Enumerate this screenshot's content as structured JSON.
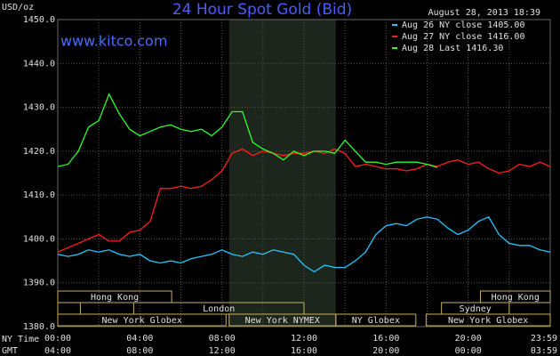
{
  "chart_data": {
    "type": "line",
    "title": "24 Hour Spot Gold (Bid)",
    "subtitle": "www.kitco.com",
    "timestamp": "August 28, 2013 18:39",
    "y_label": "USD/oz",
    "x_label": "NY Time",
    "x2_label": "GMT",
    "background": "#000000",
    "grid": true,
    "legend": "top-right",
    "xlim": [
      0,
      24
    ],
    "ylim": [
      1380,
      1450
    ],
    "yticks": [
      {
        "value": 1380,
        "label": "1380.0"
      },
      {
        "value": 1390,
        "label": "1390.0"
      },
      {
        "value": 1400,
        "label": "1400.0"
      },
      {
        "value": 1410,
        "label": "1410.0"
      },
      {
        "value": 1420,
        "label": "1420.0"
      },
      {
        "value": 1430,
        "label": "1430.0"
      },
      {
        "value": 1440,
        "label": "1440.0"
      },
      {
        "value": 1450,
        "label": "1450.0"
      }
    ],
    "xticks": [
      {
        "value": 0,
        "label": "00:00",
        "gmt": "04:00"
      },
      {
        "value": 4,
        "label": "04:00",
        "gmt": "08:00"
      },
      {
        "value": 8,
        "label": "08:00",
        "gmt": "12:00"
      },
      {
        "value": 12,
        "label": "12:00",
        "gmt": "16:00"
      },
      {
        "value": 16,
        "label": "16:00",
        "gmt": "20:00"
      },
      {
        "value": 20,
        "label": "20:00",
        "gmt": "00:00"
      },
      {
        "value": 24,
        "label": "23:59",
        "gmt": "03:59"
      }
    ],
    "xgrid_minor": [
      2,
      6,
      10,
      14,
      18,
      22
    ],
    "shaded": {
      "start": 8.35,
      "end": 13.55
    },
    "session_rows": [
      [
        {
          "label": "Hong Kong",
          "start": 0,
          "end": 5.55
        },
        {
          "label": "Hong Kong",
          "start": 20.6,
          "end": 24
        }
      ],
      [
        {
          "label": null,
          "start": 0,
          "end": 1.1
        },
        {
          "label": "London",
          "start": 3.7,
          "end": 12
        },
        {
          "label": "Sydney",
          "start": 18.7,
          "end": 22
        }
      ],
      [
        {
          "label": "New York Globex",
          "start": 0,
          "end": 8.2
        },
        {
          "label": "New York NYMEX",
          "start": 8.35,
          "end": 13.55
        },
        {
          "label": "NY Globex",
          "start": 13.55,
          "end": 17.45
        },
        {
          "label": "New York Globex",
          "start": 17.95,
          "end": 24
        }
      ]
    ],
    "x": [
      0,
      0.5,
      1,
      1.5,
      2,
      2.5,
      3,
      3.5,
      4,
      4.5,
      5,
      5.5,
      6,
      6.5,
      7,
      7.5,
      8,
      8.5,
      9,
      9.5,
      10,
      10.5,
      11,
      11.5,
      12,
      12.5,
      13,
      13.5,
      14,
      14.5,
      15,
      15.5,
      16,
      16.5,
      17,
      17.5,
      18,
      18.5,
      19,
      19.5,
      20,
      20.5,
      21,
      21.5,
      22,
      22.5,
      23,
      23.5,
      24
    ],
    "series": [
      {
        "name": "Aug 26 NY close 1405.00",
        "color": "#22c8ff",
        "values": [
          1396.5,
          1396,
          1396.5,
          1397.5,
          1397,
          1397.5,
          1396.5,
          1396,
          1396.5,
          1395,
          1394.5,
          1395,
          1394.5,
          1395.5,
          1396,
          1396.5,
          1397.5,
          1396.5,
          1396,
          1397,
          1396.5,
          1397.5,
          1397,
          1396.5,
          1394,
          1392.5,
          1394,
          1393.5,
          1393.5,
          1395,
          1397,
          1401,
          1403,
          1403.5,
          1403,
          1404.5,
          1405,
          1404.5,
          1402.5,
          1401,
          1402,
          1404,
          1405,
          1401,
          1399,
          1398.5,
          1398.5,
          1397.5,
          1397
        ]
      },
      {
        "name": "Aug 27 NY close 1416.00",
        "color": "#ff1e1e",
        "values": [
          1397,
          1398,
          1399,
          1400,
          1401,
          1399.5,
          1399.5,
          1401.5,
          1402,
          1404,
          1411.5,
          1411.5,
          1412,
          1411.5,
          1412,
          1413.5,
          1415.5,
          1419.5,
          1420.5,
          1419,
          1420,
          1419.5,
          1419,
          1419.5,
          1419.5,
          1420,
          1419.5,
          1420.5,
          1419.5,
          1416.5,
          1417,
          1416.5,
          1416,
          1416,
          1415.5,
          1416,
          1417,
          1416.5,
          1417.5,
          1418,
          1417,
          1417.5,
          1416,
          1415,
          1415.5,
          1417,
          1416.5,
          1417.5,
          1416.5
        ]
      },
      {
        "name": "Aug 28 Last 1416.30",
        "color": "#2cff2c",
        "values": [
          1416.5,
          1417,
          1420,
          1425.5,
          1427,
          1433,
          1428.5,
          1425,
          1423.5,
          1424.5,
          1425.5,
          1426,
          1425,
          1424.5,
          1425,
          1423.5,
          1425.5,
          1429,
          1429,
          1422,
          1420.5,
          1419.5,
          1418,
          1420,
          1419,
          1420,
          1420,
          1419.5,
          1422.5,
          1420,
          1417.5,
          1417.5,
          1417,
          1417.5,
          1417.5,
          1417.5,
          1417,
          1416.3,
          null,
          null,
          null,
          null,
          null,
          null,
          null,
          null,
          null,
          null,
          null
        ]
      }
    ]
  }
}
